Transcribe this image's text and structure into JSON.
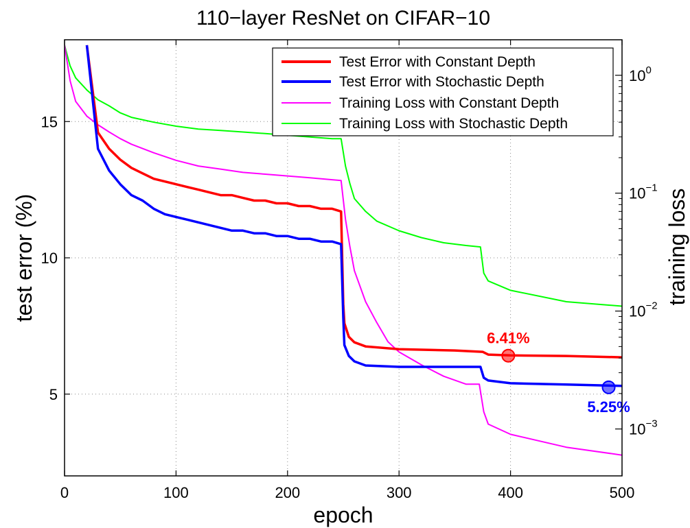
{
  "chart_data": {
    "type": "line",
    "title": "110−layer ResNet on CIFAR−10",
    "xlabel": "epoch",
    "ylabel_left": "test error (%)",
    "ylabel_right": "training loss",
    "xlim": [
      0,
      500
    ],
    "ylim_left": [
      2,
      18
    ],
    "ylim_right_log": [
      0.0004,
      2.0
    ],
    "y_scale_right": "log",
    "grid": true,
    "legend_placement": "top-right",
    "x_ticks": [
      0,
      100,
      200,
      300,
      400,
      500
    ],
    "y_ticks_left": [
      5,
      10,
      15
    ],
    "y_ticks_right": [
      {
        "value": 0.001,
        "base": "10",
        "exp": "−3"
      },
      {
        "value": 0.01,
        "base": "10",
        "exp": "−2"
      },
      {
        "value": 0.1,
        "base": "10",
        "exp": "−1"
      },
      {
        "value": 1,
        "base": "10",
        "exp": "0"
      }
    ],
    "series": [
      {
        "name": "Test Error with Constant Depth",
        "axis": "left",
        "color": "#ff0000",
        "width": 3.5,
        "points": [
          [
            20,
            17.8
          ],
          [
            30,
            14.6
          ],
          [
            40,
            14.0
          ],
          [
            50,
            13.6
          ],
          [
            60,
            13.3
          ],
          [
            70,
            13.1
          ],
          [
            80,
            12.9
          ],
          [
            90,
            12.8
          ],
          [
            100,
            12.7
          ],
          [
            110,
            12.6
          ],
          [
            120,
            12.5
          ],
          [
            130,
            12.4
          ],
          [
            140,
            12.3
          ],
          [
            150,
            12.3
          ],
          [
            160,
            12.2
          ],
          [
            170,
            12.1
          ],
          [
            180,
            12.1
          ],
          [
            190,
            12.0
          ],
          [
            200,
            12.0
          ],
          [
            210,
            11.9
          ],
          [
            220,
            11.9
          ],
          [
            230,
            11.8
          ],
          [
            240,
            11.8
          ],
          [
            248,
            11.7
          ],
          [
            250,
            8.3
          ],
          [
            251,
            7.6
          ],
          [
            255,
            7.1
          ],
          [
            260,
            6.9
          ],
          [
            270,
            6.75
          ],
          [
            300,
            6.65
          ],
          [
            350,
            6.6
          ],
          [
            375,
            6.55
          ],
          [
            380,
            6.45
          ],
          [
            400,
            6.42
          ],
          [
            450,
            6.4
          ],
          [
            500,
            6.35
          ]
        ]
      },
      {
        "name": "Test Error with Stochastic Depth",
        "axis": "left",
        "color": "#0000ff",
        "width": 3.5,
        "points": [
          [
            20,
            17.8
          ],
          [
            30,
            14.0
          ],
          [
            40,
            13.2
          ],
          [
            50,
            12.7
          ],
          [
            60,
            12.3
          ],
          [
            70,
            12.1
          ],
          [
            80,
            11.8
          ],
          [
            90,
            11.6
          ],
          [
            100,
            11.5
          ],
          [
            110,
            11.4
          ],
          [
            120,
            11.3
          ],
          [
            130,
            11.2
          ],
          [
            140,
            11.1
          ],
          [
            150,
            11.0
          ],
          [
            160,
            11.0
          ],
          [
            170,
            10.9
          ],
          [
            180,
            10.9
          ],
          [
            190,
            10.8
          ],
          [
            200,
            10.8
          ],
          [
            210,
            10.7
          ],
          [
            220,
            10.7
          ],
          [
            230,
            10.6
          ],
          [
            240,
            10.6
          ],
          [
            248,
            10.5
          ],
          [
            250,
            7.8
          ],
          [
            251,
            6.8
          ],
          [
            255,
            6.4
          ],
          [
            260,
            6.2
          ],
          [
            270,
            6.05
          ],
          [
            300,
            6.0
          ],
          [
            350,
            6.0
          ],
          [
            373,
            6.0
          ],
          [
            376,
            5.6
          ],
          [
            380,
            5.5
          ],
          [
            400,
            5.4
          ],
          [
            450,
            5.35
          ],
          [
            500,
            5.3
          ]
        ]
      },
      {
        "name": "Training Loss with Constant Depth",
        "axis": "right",
        "color": "#ff00ff",
        "width": 2,
        "points": [
          [
            0,
            1.8
          ],
          [
            5,
            0.9
          ],
          [
            10,
            0.6
          ],
          [
            20,
            0.45
          ],
          [
            30,
            0.38
          ],
          [
            40,
            0.33
          ],
          [
            50,
            0.29
          ],
          [
            60,
            0.26
          ],
          [
            80,
            0.22
          ],
          [
            100,
            0.19
          ],
          [
            120,
            0.17
          ],
          [
            140,
            0.16
          ],
          [
            160,
            0.15
          ],
          [
            180,
            0.145
          ],
          [
            200,
            0.14
          ],
          [
            220,
            0.135
          ],
          [
            240,
            0.13
          ],
          [
            248,
            0.128
          ],
          [
            252,
            0.06
          ],
          [
            256,
            0.035
          ],
          [
            260,
            0.022
          ],
          [
            270,
            0.012
          ],
          [
            280,
            0.008
          ],
          [
            290,
            0.0055
          ],
          [
            300,
            0.0045
          ],
          [
            320,
            0.0035
          ],
          [
            340,
            0.0028
          ],
          [
            360,
            0.0024
          ],
          [
            372,
            0.0024
          ],
          [
            376,
            0.0014
          ],
          [
            380,
            0.0011
          ],
          [
            400,
            0.0009
          ],
          [
            450,
            0.0007
          ],
          [
            500,
            0.0006
          ]
        ]
      },
      {
        "name": "Training Loss with Stochastic Depth",
        "axis": "right",
        "color": "#00ff00",
        "width": 2,
        "points": [
          [
            0,
            1.8
          ],
          [
            5,
            1.2
          ],
          [
            10,
            0.95
          ],
          [
            20,
            0.75
          ],
          [
            30,
            0.62
          ],
          [
            40,
            0.55
          ],
          [
            50,
            0.48
          ],
          [
            60,
            0.44
          ],
          [
            80,
            0.4
          ],
          [
            100,
            0.37
          ],
          [
            120,
            0.35
          ],
          [
            140,
            0.34
          ],
          [
            160,
            0.33
          ],
          [
            180,
            0.32
          ],
          [
            200,
            0.31
          ],
          [
            220,
            0.3
          ],
          [
            240,
            0.29
          ],
          [
            248,
            0.29
          ],
          [
            252,
            0.17
          ],
          [
            256,
            0.12
          ],
          [
            260,
            0.09
          ],
          [
            270,
            0.07
          ],
          [
            280,
            0.058
          ],
          [
            300,
            0.048
          ],
          [
            320,
            0.042
          ],
          [
            340,
            0.038
          ],
          [
            360,
            0.036
          ],
          [
            373,
            0.035
          ],
          [
            376,
            0.021
          ],
          [
            380,
            0.018
          ],
          [
            400,
            0.015
          ],
          [
            450,
            0.012
          ],
          [
            500,
            0.011
          ]
        ]
      }
    ],
    "annotations": [
      {
        "text": "6.41%",
        "x": 398,
        "y": 6.41,
        "color": "#ff0000",
        "label_pos": "above"
      },
      {
        "text": "5.25%",
        "x": 488,
        "y": 5.25,
        "color": "#0000ff",
        "label_pos": "below"
      }
    ]
  }
}
